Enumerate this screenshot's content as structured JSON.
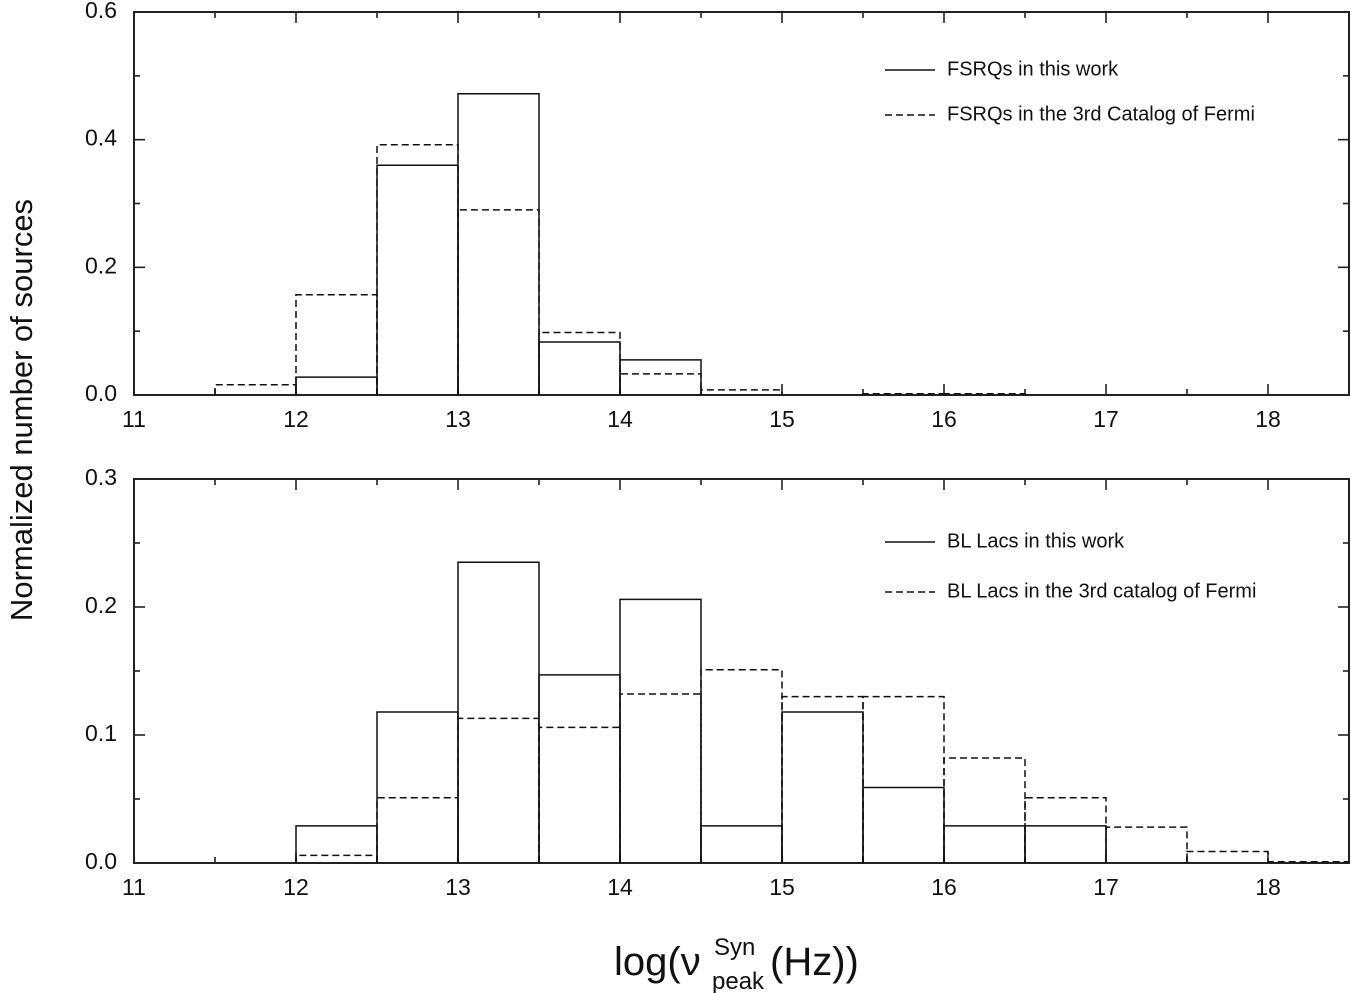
{
  "chart_data": {
    "type": "step-histogram",
    "ylabel": "Normalized number of sources",
    "xlabel": {
      "prefix": "log(ν",
      "sup": "Syn",
      "sub": "peak",
      "suffix": "(Hz))"
    },
    "panels": [
      {
        "xlim": [
          11,
          18.5
        ],
        "ylim": [
          0,
          0.6
        ],
        "x_ticks": [
          11,
          12,
          13,
          14,
          15,
          16,
          17,
          18
        ],
        "x_tick_labels": [
          "11",
          "12",
          "13",
          "14",
          "15",
          "16",
          "17",
          "18"
        ],
        "y_ticks": [
          0,
          0.2,
          0.4,
          0.6
        ],
        "y_tick_labels": [
          "0.0",
          "0.2",
          "0.4",
          "0.6"
        ],
        "legend_position": "top-right",
        "series": [
          {
            "name": "FSRQs in this work",
            "style": "solid",
            "bins": [
              [
                12,
                12.5,
                0.028
              ],
              [
                12.5,
                13,
                0.36
              ],
              [
                13,
                13.5,
                0.472
              ],
              [
                13.5,
                14,
                0.083
              ],
              [
                14,
                14.5,
                0.055
              ]
            ]
          },
          {
            "name": "FSRQs in the 3rd Catalog of Fermi",
            "style": "dashed",
            "bins": [
              [
                11.5,
                12,
                0.016
              ],
              [
                12,
                12.5,
                0.157
              ],
              [
                12.5,
                13,
                0.392
              ],
              [
                13,
                13.5,
                0.29
              ],
              [
                13.5,
                14,
                0.098
              ],
              [
                14,
                14.5,
                0.033
              ],
              [
                14.5,
                15,
                0.008
              ],
              [
                15.5,
                16,
                0.002
              ],
              [
                16,
                16.5,
                0.002
              ]
            ]
          }
        ]
      },
      {
        "xlim": [
          11,
          18.5
        ],
        "ylim": [
          0,
          0.3
        ],
        "x_ticks": [
          11,
          12,
          13,
          14,
          15,
          16,
          17,
          18
        ],
        "x_tick_labels": [
          "11",
          "12",
          "13",
          "14",
          "15",
          "16",
          "17",
          "18"
        ],
        "y_ticks": [
          0,
          0.1,
          0.2,
          0.3
        ],
        "y_tick_labels": [
          "0.0",
          "0.1",
          "0.2",
          "0.3"
        ],
        "legend_position": "top-right",
        "series": [
          {
            "name": "BL Lacs in this work",
            "style": "solid",
            "bins": [
              [
                12,
                12.5,
                0.029
              ],
              [
                12.5,
                13,
                0.118
              ],
              [
                13,
                13.5,
                0.235
              ],
              [
                13.5,
                14,
                0.147
              ],
              [
                14,
                14.5,
                0.206
              ],
              [
                14.5,
                15,
                0.029
              ],
              [
                15,
                15.5,
                0.118
              ],
              [
                15.5,
                16,
                0.059
              ],
              [
                16,
                16.5,
                0.029
              ],
              [
                16.5,
                17,
                0.029
              ]
            ]
          },
          {
            "name": "BL Lacs in the 3rd catalog of Fermi",
            "style": "dashed",
            "bins": [
              [
                12,
                12.5,
                0.006
              ],
              [
                12.5,
                13,
                0.051
              ],
              [
                13,
                13.5,
                0.113
              ],
              [
                13.5,
                14,
                0.106
              ],
              [
                14,
                14.5,
                0.132
              ],
              [
                14.5,
                15,
                0.151
              ],
              [
                15,
                15.5,
                0.13
              ],
              [
                15.5,
                16,
                0.13
              ],
              [
                16,
                16.5,
                0.082
              ],
              [
                16.5,
                17,
                0.051
              ],
              [
                17,
                17.5,
                0.028
              ],
              [
                17.5,
                18,
                0.009
              ],
              [
                18,
                18.5,
                0.001
              ]
            ]
          }
        ]
      }
    ]
  }
}
